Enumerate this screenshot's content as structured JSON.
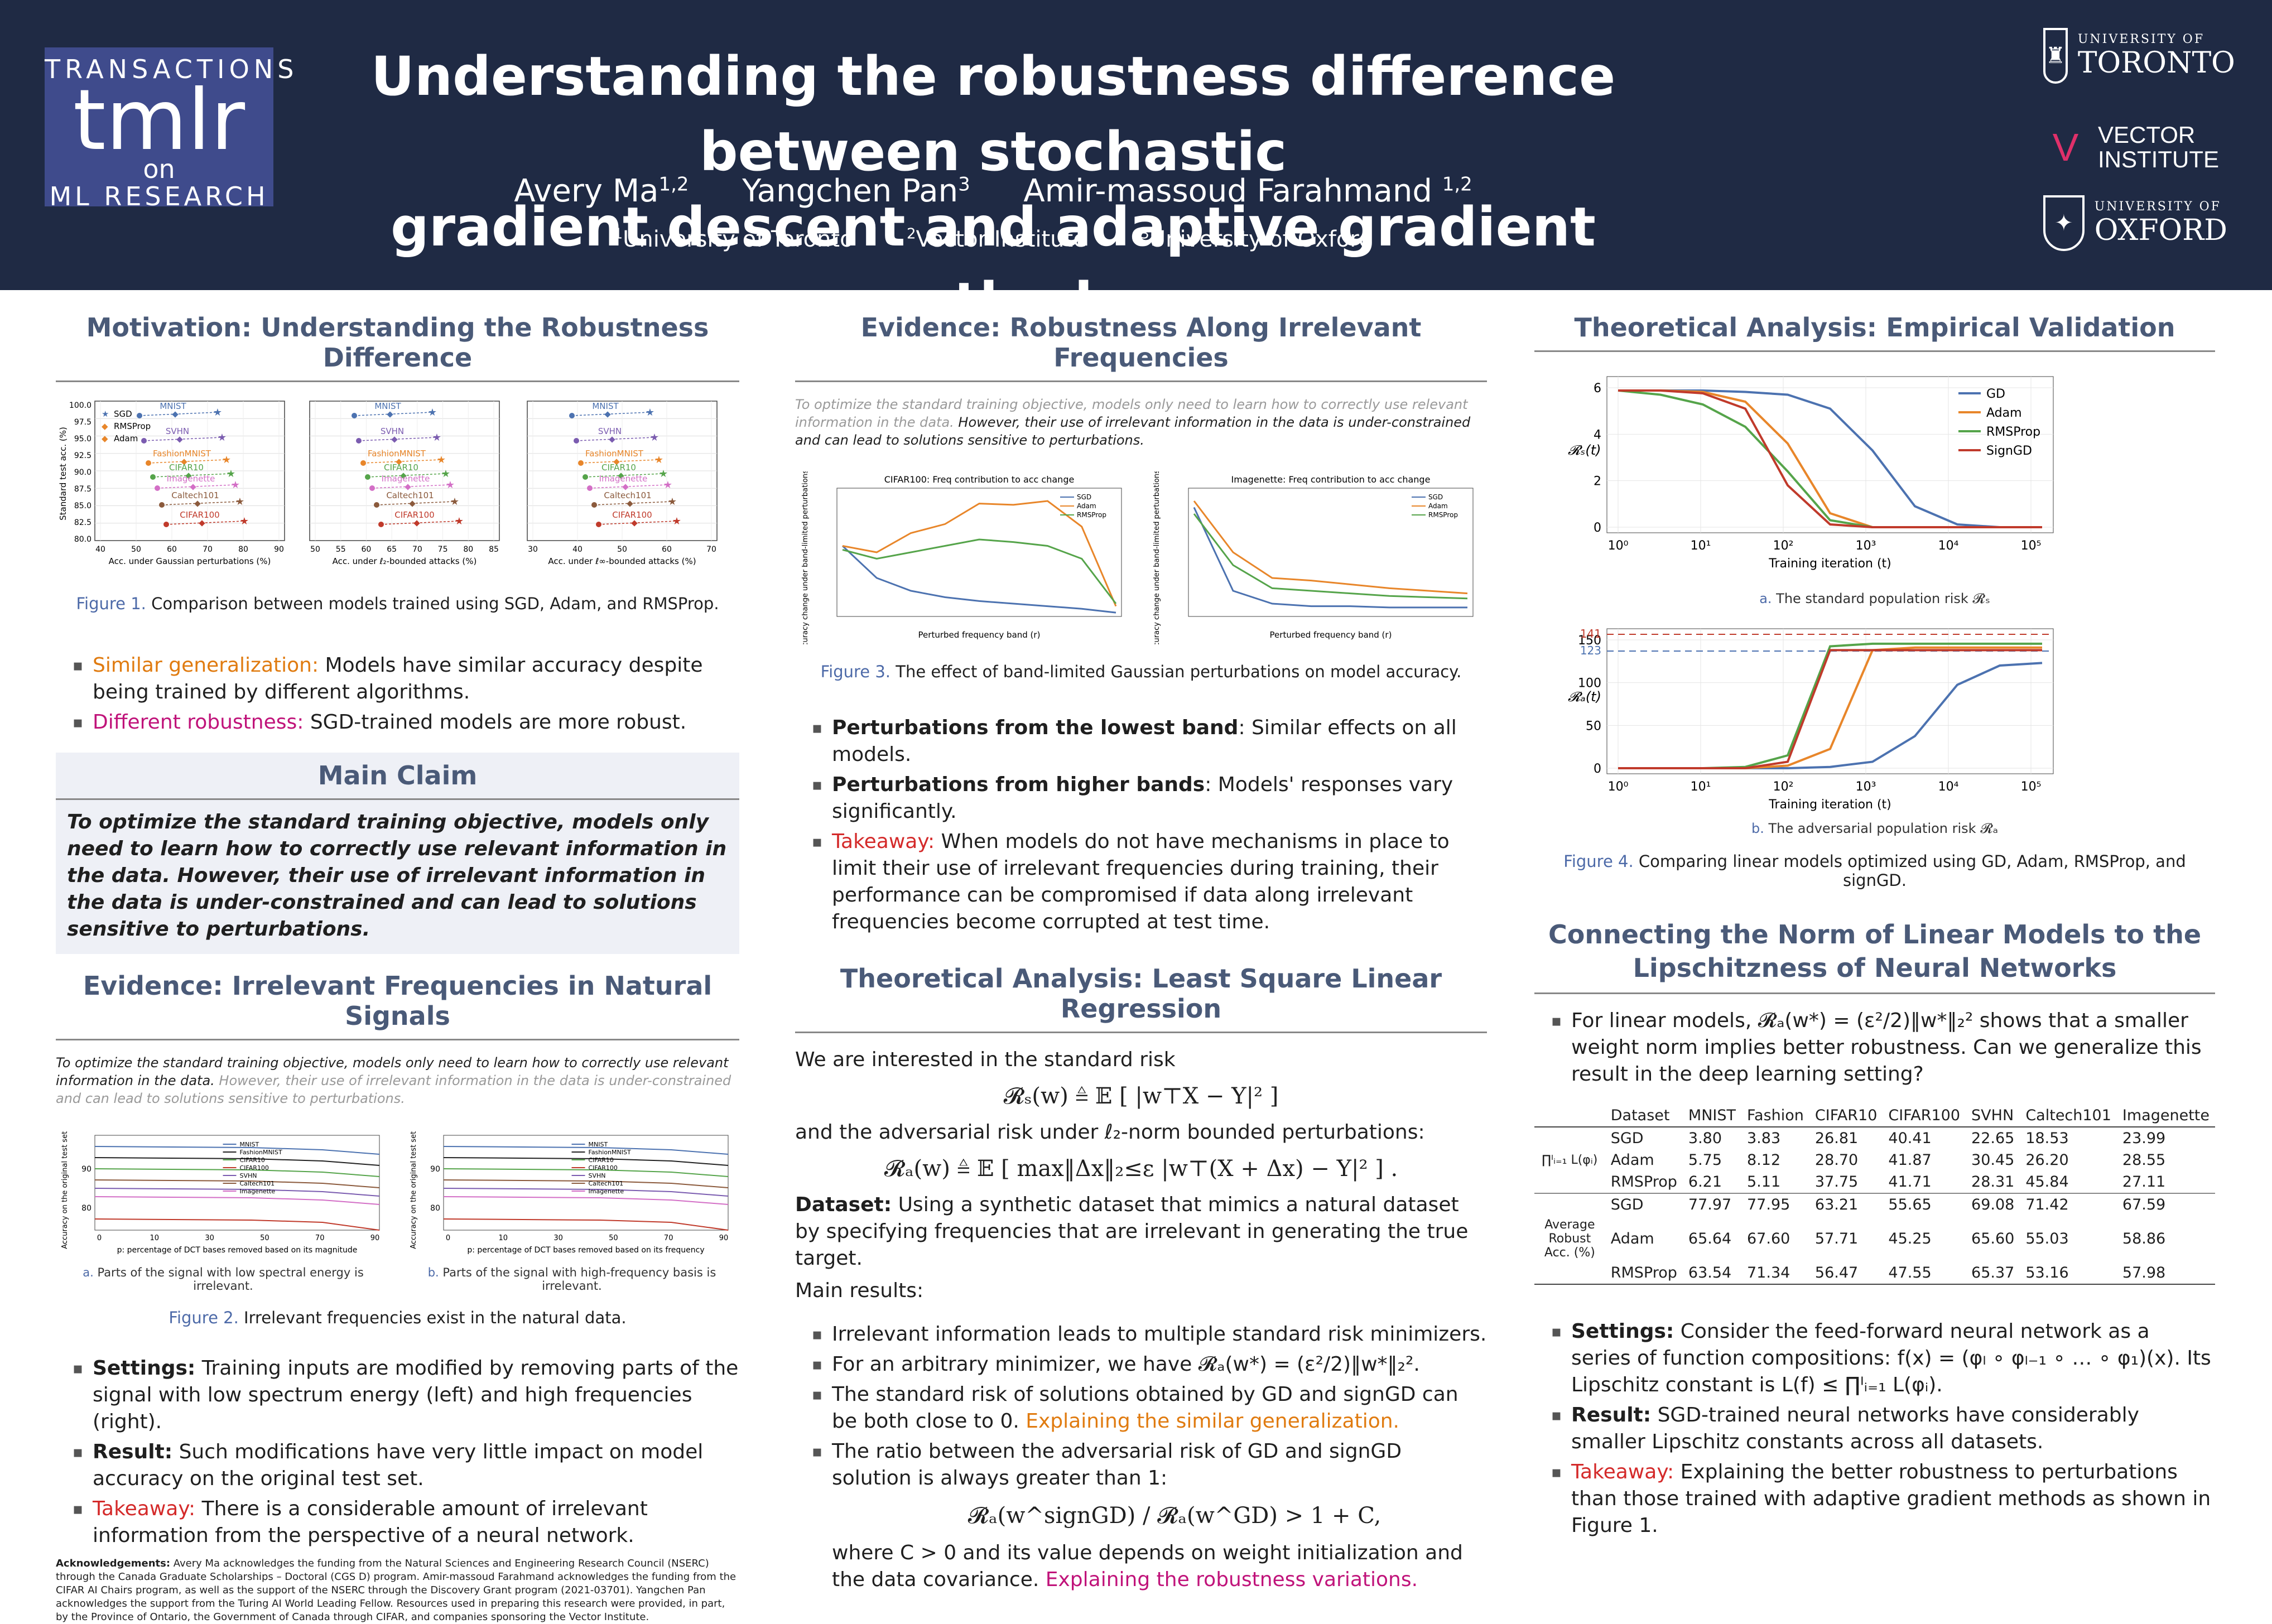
{
  "header": {
    "logo": {
      "line1": "TRANSACTIONS",
      "line2": "tmlr",
      "line3": "on",
      "line4": "ML RESEARCH"
    },
    "title_line1": "Understanding the robustness difference between stochastic",
    "title_line2": "gradient descent and adaptive gradient methods",
    "authors": [
      {
        "name": "Avery Ma",
        "sup": "1,2"
      },
      {
        "name": "Yangchen Pan",
        "sup": "3"
      },
      {
        "name": "Amir-massoud Farahmand ",
        "sup": "1,2"
      }
    ],
    "affiliations": [
      {
        "sup": "1",
        "name": "University of Toronto"
      },
      {
        "sup": "2",
        "name": "Vector Institute"
      },
      {
        "sup": "3",
        "name": "University of Oxford"
      }
    ],
    "institutions": {
      "toronto_small": "UNIVERSITY OF",
      "toronto_large": "TORONTO",
      "vector_line1": "VECTOR",
      "vector_line2": "INSTITUTE",
      "oxford_small": "UNIVERSITY OF",
      "oxford_large": "OXFORD"
    }
  },
  "col1": {
    "motivation_title": "Motivation: Understanding the Robustness Difference",
    "fig1_label": "Figure 1.",
    "fig1_caption": "Comparison between models trained using SGD, Adam, and RMSProp.",
    "fig1_labels": {
      "ylabel": "Standard test acc. (%)",
      "x1": "Acc. under Gaussian perturbations (%)",
      "x2": "Acc. under ℓ₂-bounded attacks (%)",
      "x3": "Acc. under ℓ∞-bounded attacks (%)",
      "legend": [
        "SGD",
        "RMSProp",
        "Adam"
      ],
      "yticks": [
        "100.0",
        "97.5",
        "95.0",
        "92.5",
        "90.0",
        "87.5",
        "85.0",
        "82.5",
        "80.0"
      ],
      "xticks1": [
        "40",
        "50",
        "60",
        "70",
        "80",
        "90"
      ],
      "xticks2": [
        "50",
        "55",
        "60",
        "65",
        "70",
        "75",
        "80",
        "85"
      ],
      "xticks3": [
        "30",
        "40",
        "50",
        "60",
        "70"
      ],
      "datasets": [
        "MNIST",
        "SVHN",
        "FashionMNIST",
        "CIFAR10",
        "Imagenette",
        "Caltech101",
        "CIFAR100"
      ]
    },
    "bullets1": [
      {
        "key": "Similar generalization:",
        "text": " Models have similar accuracy despite being trained by different algorithms."
      },
      {
        "key": "Different robustness:",
        "text": " SGD-trained models are more robust."
      }
    ],
    "claim_title": "Main Claim",
    "claim_text": "To optimize the standard training objective, models only need to learn how to correctly use relevant information in the data.  However, their use of irrelevant information in the data is under-constrained and can lead to solutions sensitive to perturbations.",
    "evidence_title": "Evidence: Irrelevant Frequencies in Natural Signals",
    "evidence_intro_black": "To optimize the standard training objective, models only need to learn how to correctly use relevant information in the data.",
    "evidence_intro_gray": " However, their use of irrelevant information in the data is under-constrained and can lead to solutions sensitive to perturbations.",
    "fig2_labels": {
      "ylabel": "Accuracy on the original test set (%)",
      "xlabel": "p: percentage of DCT bases removed based on its magnitude",
      "xlabel_b": "p: percentage of DCT bases removed based on its frequency",
      "yticks": [
        "90",
        "80"
      ],
      "xticks": [
        "0",
        "10",
        "30",
        "50",
        "70",
        "90"
      ],
      "legend": [
        "MNIST",
        "FashionMNIST",
        "CIFAR10",
        "CIFAR100",
        "SVHN",
        "Caltech101",
        "Imagenette"
      ]
    },
    "fig2a_letter": "a.",
    "fig2a_text": "Parts of the signal with low spectral energy is irrelevant.",
    "fig2b_letter": "b.",
    "fig2b_text": "Parts of the signal with high-frequency basis is irrelevant.",
    "fig2_label": "Figure 2.",
    "fig2_caption": "Irrelevant frequencies exist in the natural data.",
    "bullets2": [
      {
        "key": "Settings:",
        "text": " Training inputs are modified by removing parts of the signal with low spectrum energy (left) and high frequencies (right).",
        "color": "black"
      },
      {
        "key": "Result:",
        "text": " Such modifications have very little impact on model accuracy on the original test set.",
        "color": "black"
      },
      {
        "key": "Takeaway:",
        "text": " There is a considerable amount of irrelevant information from the perspective of a neural network.",
        "color": "red"
      }
    ],
    "ack_title": "Acknowledgements:",
    "ack_text": " Avery Ma acknowledges the funding from the Natural Sciences and Engineering Research Council (NSERC) through the Canada Graduate Scholarships – Doctoral (CGS D) program. Amir-massoud Farahmand acknowledges the funding from the CIFAR AI Chairs program, as well as the support of the NSERC through the Discovery Grant program (2021-03701). Yangchen Pan acknowledges the support from the Turing AI World Leading Fellow.  Resources used in preparing this research were provided, in part, by the Province of Ontario, the Government of Canada through CIFAR, and companies sponsoring the Vector Institute."
  },
  "col2": {
    "evidence_title": "Evidence: Robustness Along Irrelevant Frequencies",
    "intro_gray": "To optimize the standard training objective, models only need to learn how to correctly use relevant information in the data.",
    "intro_black": " However, their use of irrelevant information in the data is under-constrained and can lead to solutions sensitive to perturbations.",
    "fig3_left_title": "CIFAR100: Freq contribution to acc change",
    "fig3_right_title": "Imagenette: Freq contribution to acc change",
    "fig3_xlabel": "Perturbed frequency band (r)",
    "fig3_ylabel": "Accuracy change under band-limited perturbations (%)",
    "fig3_legend": [
      "SGD",
      "Adam",
      "RMSProp"
    ],
    "fig3_label": "Figure 3.",
    "fig3_caption": "The effect of band-limited Gaussian perturbations on model accuracy.",
    "bullets": [
      {
        "key": "Perturbations from the lowest band",
        "text": ": Similar effects on all models.",
        "color": "black"
      },
      {
        "key": "Perturbations from higher bands",
        "text": ": Models' responses vary significantly.",
        "color": "black"
      },
      {
        "key": "Takeaway:",
        "text": " When models do not have mechanisms in place to limit their use of irrelevant frequencies during training, their performance can be compromised if data along irrelevant frequencies become corrupted at test time.",
        "color": "red"
      }
    ],
    "theory_title": "Theoretical Analysis: Least Square Linear Regression",
    "p1": "We are interested in the standard risk",
    "eq1": "𝓡ₛ(w) ≜ 𝔼 [ |w⊤X − Y|² ]",
    "p2": "and the adversarial risk under ℓ₂-norm bounded perturbations:",
    "eq2": "𝓡ₐ(w) ≜ 𝔼 [ max‖Δx‖₂≤ε |w⊤(X + Δx) − Y|² ] .",
    "dataset_key": "Dataset:",
    "dataset_text": " Using a synthetic dataset that mimics a natural dataset by specifying frequencies that are irrelevant in generating the true target.",
    "main_results": "Main results:",
    "results": [
      "Irrelevant information leads to multiple standard risk minimizers.",
      "For an arbitrary minimizer, we have 𝓡ₐ(w*) = (ε²/2)‖w*‖₂².",
      "The standard risk of solutions obtained by GD and signGD can be both close to 0. ",
      "The ratio between the adversarial risk of GD and signGD solution is always greater than 1:"
    ],
    "results_orange": "Explaining the similar generalization.",
    "eq3": "𝓡ₐ(w^signGD) / 𝓡ₐ(w^GD) > 1 + C,",
    "p3": "where C > 0 and its value depends on weight initialization and the data covariance. ",
    "p3_magenta": "Explaining the robustness variations."
  },
  "col3": {
    "empirical_title": "Theoretical Analysis: Empirical Validation",
    "fig4a": {
      "ylabel": "𝓡ₛ(t)",
      "xlabel": "Training iteration (t)",
      "yticks": [
        "6",
        "4",
        "2",
        "0"
      ],
      "xticks": [
        "10⁰",
        "10¹",
        "10²",
        "10³",
        "10⁴",
        "10⁵"
      ],
      "legend": [
        "GD",
        "Adam",
        "RMSProp",
        "SignGD"
      ]
    },
    "fig4a_letter": "a.",
    "fig4a_text": "The standard population risk 𝓡ₛ",
    "fig4b": {
      "ylabel": "𝓡ₐ(t)",
      "xlabel": "Training iteration (t)",
      "yticks": [
        "150",
        "100",
        "50",
        "0"
      ],
      "ref_labels": [
        "141",
        "123"
      ],
      "xticks": [
        "10⁰",
        "10¹",
        "10²",
        "10³",
        "10⁴",
        "10⁵"
      ]
    },
    "fig4b_letter": "b.",
    "fig4b_text": "The adversarial population risk 𝓡ₐ",
    "fig4_label": "Figure 4.",
    "fig4_caption": "Comparing linear models optimized using GD, Adam, RMSProp, and signGD.",
    "norm_title": "Connecting the Norm of Linear Models to the Lipschitzness of Neural Networks",
    "bullet_intro": "For linear models, 𝓡ₐ(w*) = (ε²/2)‖w*‖₂² shows that a smaller weight norm implies better robustness.  Can we generalize this result in the deep learning setting?",
    "table": {
      "headers": [
        "Dataset",
        "MNIST",
        "Fashion",
        "CIFAR10",
        "CIFAR100",
        "SVHN",
        "Caltech101",
        "Imagenette"
      ],
      "group1_label": "∏ᴵᵢ₌₁ L(φᵢ)",
      "group1": [
        {
          "opt": "SGD",
          "vals": [
            "3.80",
            "3.83",
            "26.81",
            "40.41",
            "22.65",
            "18.53",
            "23.99"
          ]
        },
        {
          "opt": "Adam",
          "vals": [
            "5.75",
            "8.12",
            "28.70",
            "41.87",
            "30.45",
            "26.20",
            "28.55"
          ]
        },
        {
          "opt": "RMSProp",
          "vals": [
            "6.21",
            "5.11",
            "37.75",
            "41.71",
            "28.31",
            "45.84",
            "27.11"
          ]
        }
      ],
      "group2_label": "Average Robust Acc. (%)",
      "group2": [
        {
          "opt": "SGD",
          "vals": [
            "77.97",
            "77.95",
            "63.21",
            "55.65",
            "69.08",
            "71.42",
            "67.59"
          ]
        },
        {
          "opt": "Adam",
          "vals": [
            "65.64",
            "67.60",
            "57.71",
            "45.25",
            "65.60",
            "55.03",
            "58.86"
          ]
        },
        {
          "opt": "RMSProp",
          "vals": [
            "63.54",
            "71.34",
            "56.47",
            "47.55",
            "65.37",
            "53.16",
            "57.98"
          ]
        }
      ]
    },
    "bullets": [
      {
        "key": "Settings:",
        "text": " Consider the feed-forward neural network as a series of function compositions: f(x) = (φₗ ∘ φₗ₋₁ ∘ … ∘ φ₁)(x). Its Lipschitz constant is L(f) ≤ ∏ᴵᵢ₌₁ L(φᵢ).",
        "color": "black"
      },
      {
        "key": "Result:",
        "text": " SGD-trained neural networks have considerably smaller Lipschitz constants across all datasets.",
        "color": "black"
      },
      {
        "key": "Takeaway:",
        "text": " Explaining the better robustness to perturbations than those trained with adaptive gradient methods as shown in Figure 1.",
        "color": "red"
      }
    ]
  },
  "colors": {
    "header_bg": "#1f2a44",
    "accent": "#4a5a78",
    "orange": "#e07b10",
    "magenta": "#c0137a",
    "red": "#d42a2a",
    "sgd": "#4c72b0",
    "adam": "#e8862a",
    "rmsprop": "#55a44a",
    "signgd": "#c03a2b"
  }
}
